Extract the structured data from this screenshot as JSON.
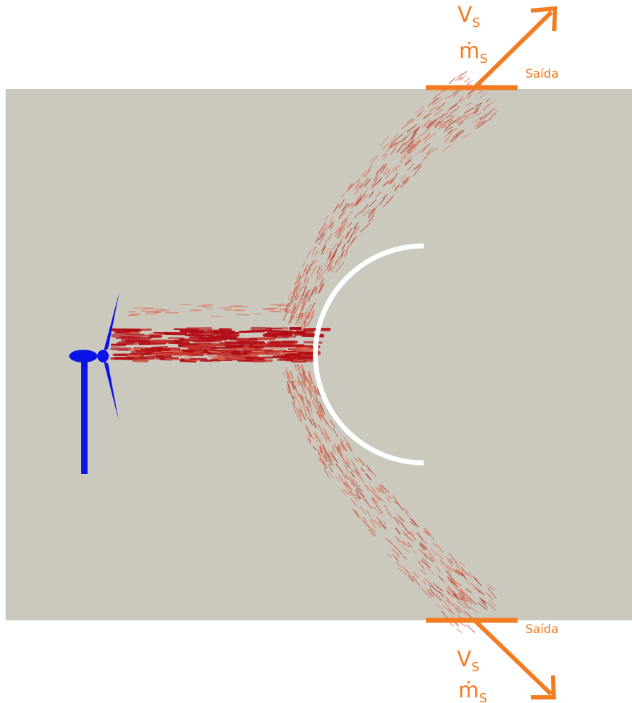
{
  "colors": {
    "domain": "#cbc8bd",
    "annotation": "#f47b22",
    "turbine": "#0a14e6",
    "obstacle": "#ffffff",
    "vector_strong": "#b40f16",
    "vector_weak": "#e0705a"
  },
  "icons": {
    "turbine": "wind-turbine-icon",
    "outlet_arrow": "arrow-icon"
  },
  "outlets": [
    {
      "label": "Saída",
      "velocity_symbol": "V",
      "velocity_subscript": "S",
      "mass_flow_symbol": "ṁ",
      "mass_flow_subscript": "S"
    },
    {
      "label": "Saída",
      "velocity_symbol": "V",
      "velocity_subscript": "S",
      "mass_flow_symbol": "ṁ",
      "mass_flow_subscript": "S"
    }
  ]
}
